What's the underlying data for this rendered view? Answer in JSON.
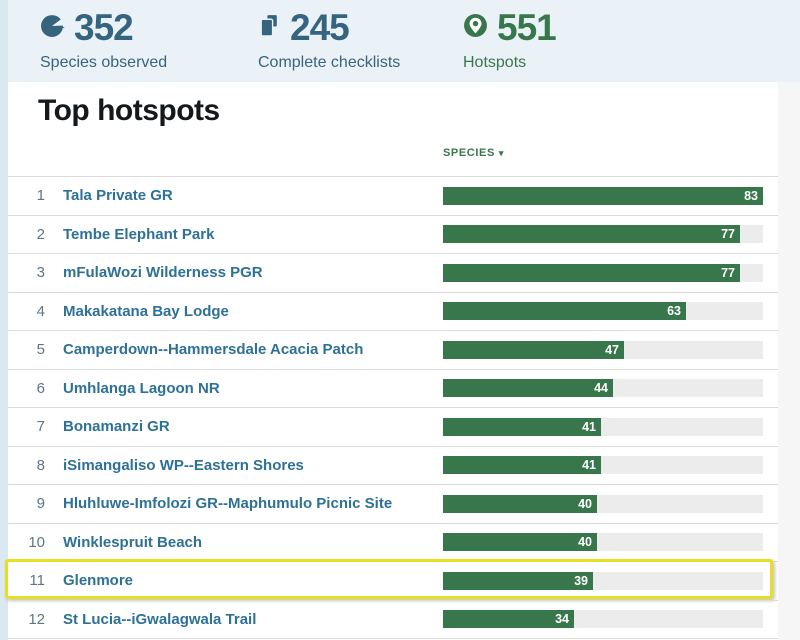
{
  "page": {
    "background": "#ffffff",
    "left_strip_color": "#d9e8f1",
    "stats_band_color": "#ebf2f7",
    "right_strip_color": "#f6f6f7"
  },
  "stats": [
    {
      "value": "352",
      "label": "Species observed",
      "icon": "bird-icon",
      "color": "#35647e"
    },
    {
      "value": "245",
      "label": "Complete checklists",
      "icon": "checklist-icon",
      "color": "#35647e"
    },
    {
      "value": "551",
      "label": "Hotspots",
      "icon": "hotspot-pin-icon",
      "color": "#38764b"
    }
  ],
  "section": {
    "title": "Top hotspots"
  },
  "table": {
    "species_header": "SPECIES",
    "sort_caret": "▾",
    "max_species": 83,
    "bar_color": "#38764b",
    "track_color": "#ececec",
    "link_color": "#2e7196",
    "rows": [
      {
        "rank": 1,
        "name": "Tala Private GR",
        "species": 83
      },
      {
        "rank": 2,
        "name": "Tembe Elephant Park",
        "species": 77
      },
      {
        "rank": 3,
        "name": "mFulaWozi Wilderness PGR",
        "species": 77
      },
      {
        "rank": 4,
        "name": "Makakatana Bay Lodge",
        "species": 63
      },
      {
        "rank": 5,
        "name": "Camperdown--Hammersdale Acacia Patch",
        "species": 47
      },
      {
        "rank": 6,
        "name": "Umhlanga Lagoon NR",
        "species": 44
      },
      {
        "rank": 7,
        "name": "Bonamanzi GR",
        "species": 41
      },
      {
        "rank": 8,
        "name": "iSimangaliso WP--Eastern Shores",
        "species": 41
      },
      {
        "rank": 9,
        "name": "Hluhluwe-Imfolozi GR--Maphumulo Picnic Site",
        "species": 40
      },
      {
        "rank": 10,
        "name": "Winklespruit Beach",
        "species": 40
      },
      {
        "rank": 11,
        "name": "Glenmore",
        "species": 39
      },
      {
        "rank": 12,
        "name": "St Lucia--iGwalagwala Trail",
        "species": 34
      }
    ]
  },
  "highlight": {
    "rank": 11,
    "border_color": "#e8df25"
  },
  "chart_data": {
    "type": "bar",
    "orientation": "horizontal",
    "title": "Top hotspots",
    "value_label": "SPECIES",
    "categories": [
      "Tala Private GR",
      "Tembe Elephant Park",
      "mFulaWozi Wilderness PGR",
      "Makakatana Bay Lodge",
      "Camperdown--Hammersdale Acacia Patch",
      "Umhlanga Lagoon NR",
      "Bonamanzi GR",
      "iSimangaliso WP--Eastern Shores",
      "Hluhluwe-Imfolozi GR--Maphumulo Picnic Site",
      "Winklespruit Beach",
      "Glenmore",
      "St Lucia--iGwalagwala Trail"
    ],
    "values": [
      83,
      77,
      77,
      63,
      47,
      44,
      41,
      41,
      40,
      40,
      39,
      34
    ],
    "xlim": [
      0,
      83
    ],
    "highlighted_category": "Glenmore"
  }
}
